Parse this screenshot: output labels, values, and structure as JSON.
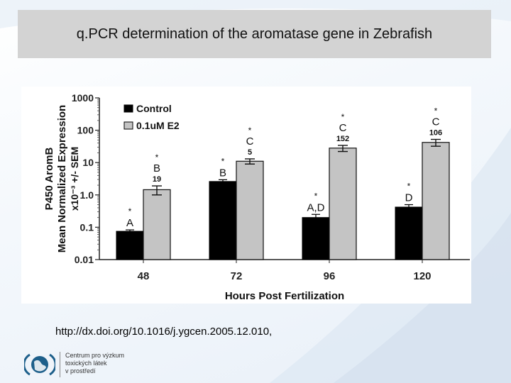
{
  "slide": {
    "title": "q.PCR determination of the aromatase gene in Zebrafish",
    "link": "http://dx.doi.org/10.1016/j.ygcen.2005.12.010,",
    "logo_lines": [
      "Centrum pro výzkum",
      "toxických látek",
      "v prostředí"
    ]
  },
  "chart_data": {
    "type": "bar",
    "xlabel": "Hours Post Fertilization",
    "ylabel_line1": "P450 AromB",
    "ylabel_line2": "Mean Normalized Expression",
    "ylabel_line3": "x10⁻³ +/- SEM",
    "yscale": "log",
    "ylim": [
      0.01,
      1000
    ],
    "yticks": [
      "1000",
      "100",
      "10",
      "1.0",
      "0.1",
      "0.01"
    ],
    "ytick_values": [
      1000,
      100,
      10,
      1,
      0.1,
      0.01
    ],
    "categories": [
      "48",
      "72",
      "96",
      "120"
    ],
    "legend_position": "top-left",
    "colors": {
      "control": "#000000",
      "treated": "#c4c4c4"
    },
    "series": [
      {
        "name": "Control",
        "values": [
          0.075,
          2.6,
          0.2,
          0.42
        ],
        "errors": [
          0.008,
          0.35,
          0.05,
          0.08
        ]
      },
      {
        "name": "0.1uM E2",
        "values": [
          1.45,
          11,
          28,
          42
        ],
        "errors": [
          0.45,
          2.0,
          6,
          10
        ]
      }
    ],
    "annotations": {
      "control": [
        {
          "star": "*",
          "letter": "A",
          "number": ""
        },
        {
          "star": "*",
          "letter": "B",
          "number": ""
        },
        {
          "star": "*",
          "letter": "A,D",
          "number": ""
        },
        {
          "star": "*",
          "letter": "D",
          "number": ""
        }
      ],
      "treated": [
        {
          "star": "*",
          "letter": "B",
          "number": "19"
        },
        {
          "star": "*",
          "letter": "C",
          "number": "5"
        },
        {
          "star": "*",
          "letter": "C",
          "number": "152"
        },
        {
          "star": "*",
          "letter": "C",
          "number": "106"
        }
      ]
    }
  }
}
